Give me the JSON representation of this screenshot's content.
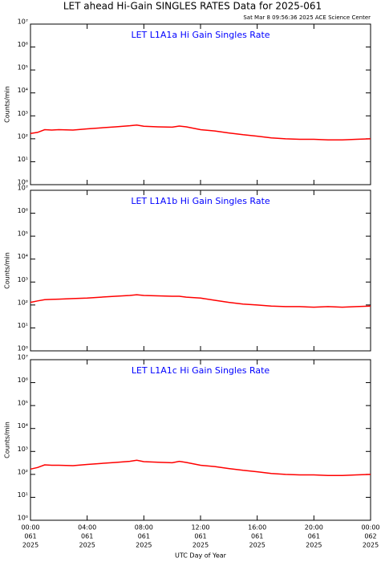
{
  "title": "LET ahead Hi-Gain SINGLES RATES Data for 2025-061",
  "timestamp": "Sat Mar  8 09:56:36 2025 ACE Science Center",
  "x_label": "UTC Day of Year",
  "chart_data": [
    {
      "type": "line",
      "title": "LET L1A1a Hi Gain Singles Rate",
      "y_label": "Counts/min",
      "log_scale": true,
      "xlim": [
        0,
        24
      ],
      "ylim": [
        1,
        10000000
      ],
      "yticks": [
        {
          "value": 1,
          "label": "10⁰"
        },
        {
          "value": 10,
          "label": "10¹"
        },
        {
          "value": 100,
          "label": "10²"
        },
        {
          "value": 1000,
          "label": "10³"
        },
        {
          "value": 10000,
          "label": "10⁴"
        },
        {
          "value": 100000,
          "label": "10⁵"
        },
        {
          "value": 1000000,
          "label": "10⁶"
        },
        {
          "value": 10000000,
          "label": "10⁷"
        }
      ],
      "x": [
        0,
        0.5,
        1,
        1.5,
        2,
        3,
        4,
        5,
        6,
        7,
        7.5,
        8,
        9,
        10,
        10.5,
        11,
        12,
        13,
        14,
        15,
        16,
        17,
        18,
        19,
        20,
        21,
        22,
        23,
        24
      ],
      "series": [
        {
          "color": "#ff0000",
          "values": [
            170,
            190,
            250,
            240,
            250,
            240,
            270,
            300,
            330,
            370,
            400,
            350,
            330,
            320,
            360,
            330,
            250,
            220,
            180,
            150,
            130,
            110,
            100,
            95,
            95,
            90,
            90,
            95,
            100
          ]
        }
      ]
    },
    {
      "type": "line",
      "title": "LET L1A1b Hi Gain Singles Rate",
      "y_label": "Counts/min",
      "log_scale": true,
      "xlim": [
        0,
        24
      ],
      "ylim": [
        1,
        10000000
      ],
      "yticks": [
        {
          "value": 1,
          "label": "10⁰"
        },
        {
          "value": 10,
          "label": "10¹"
        },
        {
          "value": 100,
          "label": "10²"
        },
        {
          "value": 1000,
          "label": "10³"
        },
        {
          "value": 10000,
          "label": "10⁴"
        },
        {
          "value": 100000,
          "label": "10⁵"
        },
        {
          "value": 1000000,
          "label": "10⁶"
        },
        {
          "value": 10000000,
          "label": "10⁷"
        }
      ],
      "x": [
        0,
        0.5,
        1,
        1.5,
        2,
        3,
        4,
        5,
        6,
        7,
        7.5,
        8,
        9,
        10,
        10.5,
        11,
        12,
        13,
        14,
        15,
        16,
        17,
        18,
        19,
        20,
        21,
        22,
        23,
        24
      ],
      "series": [
        {
          "color": "#ff0000",
          "values": [
            130,
            150,
            170,
            175,
            180,
            190,
            200,
            220,
            240,
            260,
            280,
            260,
            250,
            240,
            240,
            220,
            200,
            160,
            130,
            110,
            100,
            90,
            85,
            85,
            80,
            85,
            80,
            85,
            90
          ]
        }
      ]
    },
    {
      "type": "line",
      "title": "LET L1A1c Hi Gain Singles Rate",
      "y_label": "Counts/min",
      "log_scale": true,
      "xlim": [
        0,
        24
      ],
      "ylim": [
        1,
        10000000
      ],
      "xticks": [
        {
          "value": 0,
          "label": [
            "00:00",
            "061",
            "2025"
          ]
        },
        {
          "value": 4,
          "label": [
            "04:00",
            "061",
            "2025"
          ]
        },
        {
          "value": 8,
          "label": [
            "08:00",
            "061",
            "2025"
          ]
        },
        {
          "value": 12,
          "label": [
            "12:00",
            "061",
            "2025"
          ]
        },
        {
          "value": 16,
          "label": [
            "16:00",
            "061",
            "2025"
          ]
        },
        {
          "value": 20,
          "label": [
            "20:00",
            "061",
            "2025"
          ]
        },
        {
          "value": 24,
          "label": [
            "00:00",
            "062",
            "2025"
          ]
        }
      ],
      "yticks": [
        {
          "value": 1,
          "label": "10⁰"
        },
        {
          "value": 10,
          "label": "10¹"
        },
        {
          "value": 100,
          "label": "10²"
        },
        {
          "value": 1000,
          "label": "10³"
        },
        {
          "value": 10000,
          "label": "10⁴"
        },
        {
          "value": 100000,
          "label": "10⁵"
        },
        {
          "value": 1000000,
          "label": "10⁶"
        },
        {
          "value": 10000000,
          "label": "10⁷"
        }
      ],
      "x": [
        0,
        0.5,
        1,
        1.5,
        2,
        3,
        4,
        5,
        6,
        7,
        7.5,
        8,
        9,
        10,
        10.5,
        11,
        12,
        13,
        14,
        15,
        16,
        17,
        18,
        19,
        20,
        21,
        22,
        23,
        24
      ],
      "series": [
        {
          "color": "#ff0000",
          "values": [
            170,
            200,
            260,
            250,
            250,
            240,
            270,
            300,
            330,
            370,
            410,
            360,
            340,
            320,
            370,
            330,
            250,
            220,
            180,
            150,
            130,
            110,
            100,
            95,
            95,
            90,
            90,
            95,
            100
          ]
        }
      ]
    }
  ]
}
